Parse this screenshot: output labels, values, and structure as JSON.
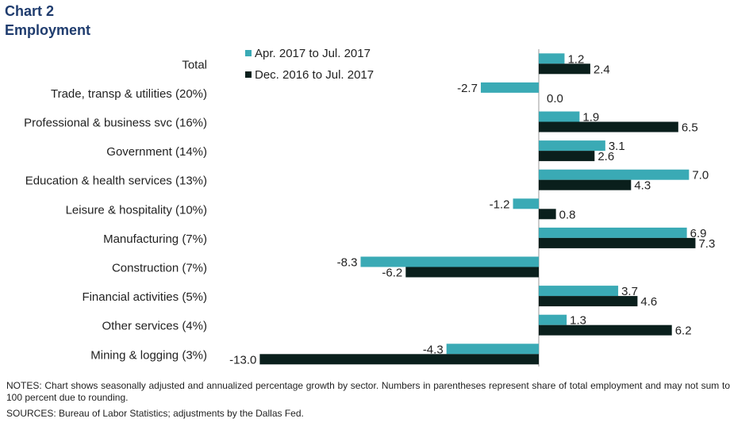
{
  "header": {
    "title": "Chart 2",
    "subtitle": "Employment"
  },
  "notes": "NOTES: Chart shows seasonally adjusted and annualized percentage growth by sector. Numbers in parentheses represent share of total employment and may not sum to 100 percent due to rounding.",
  "sources": "SOURCES: Bureau of Labor Statistics; adjustments by the Dallas Fed.",
  "colors": {
    "series1": "#3aaab5",
    "series2": "#0a1f1c",
    "title": "#1f3c6e"
  },
  "chart_data": {
    "type": "bar",
    "orientation": "horizontal",
    "categories": [
      "Total",
      "Trade, transp & utilities (20%)",
      "Professional & business svc (16%)",
      "Government (14%)",
      "Education & health services (13%)",
      "Leisure & hospitality (10%)",
      "Manufacturing (7%)",
      "Construction (7%)",
      "Financial activities (5%)",
      "Other services (4%)",
      "Mining & logging (3%)"
    ],
    "series": [
      {
        "name": "Apr. 2017 to Jul. 2017",
        "values": [
          1.2,
          -2.7,
          1.9,
          3.1,
          7.0,
          -1.2,
          6.9,
          -8.3,
          3.7,
          1.3,
          -4.3
        ],
        "labels": [
          "1.2",
          "-2.7",
          "1.9",
          "3.1",
          "7.0",
          "-1.2",
          "6.9",
          "-8.3",
          "3.7",
          "1.3",
          "-4.3"
        ]
      },
      {
        "name": "Dec. 2016 to Jul. 2017",
        "values": [
          2.4,
          0.0,
          6.5,
          2.6,
          4.3,
          0.8,
          7.3,
          -6.2,
          4.6,
          6.2,
          -13.0
        ],
        "labels": [
          "2.4",
          "0.0",
          "6.5",
          "2.6",
          "4.3",
          "0.8",
          "7.3",
          "-6.2",
          "4.6",
          "6.2",
          "-13.0"
        ]
      }
    ],
    "xlim": [
      -13.0,
      7.3
    ],
    "grid": false,
    "legend_position": "top-center"
  }
}
